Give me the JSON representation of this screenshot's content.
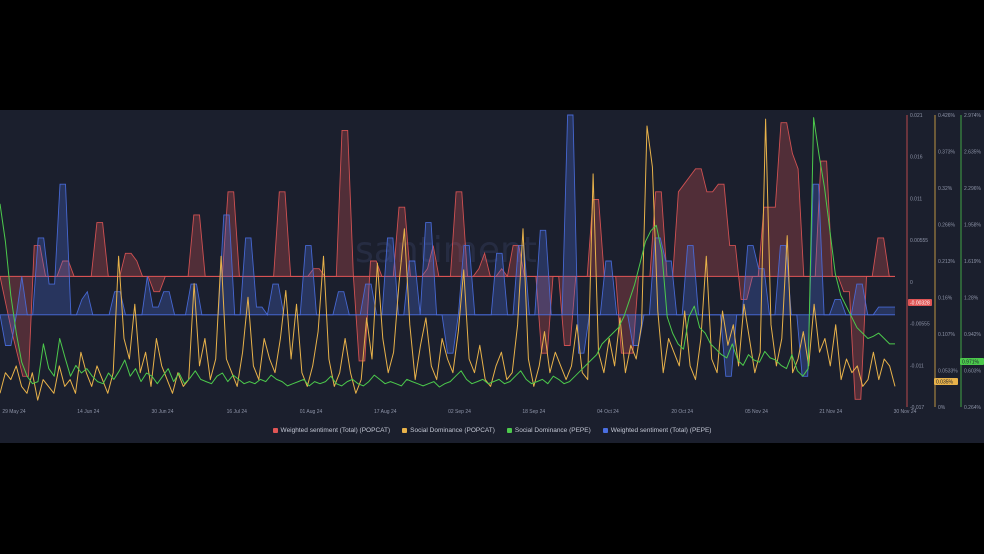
{
  "watermark": "santiment",
  "legend": [
    {
      "label": "Weighted sentiment (Total) (POPCAT)",
      "color": "#e05555"
    },
    {
      "label": "Social Dominance (POPCAT)",
      "color": "#e8b24a"
    },
    {
      "label": "Social Dominance (PEPE)",
      "color": "#4cc94c"
    },
    {
      "label": "Weighted sentiment (Total) (PEPE)",
      "color": "#4a6ee0"
    }
  ],
  "badges": {
    "popcat_sentiment": "-0.00328",
    "popcat_dominance": "0.035%",
    "pepe_dominance": "0.971%"
  },
  "chart_data": {
    "type": "line",
    "x_ticks": [
      "29 May 24",
      "14 Jun 24",
      "30 Jun 24",
      "16 Jul 24",
      "01 Aug 24",
      "17 Aug 24",
      "02 Sep 24",
      "18 Sep 24",
      "04 Oct 24",
      "20 Oct 24",
      "05 Nov 24",
      "21 Nov 24",
      "30 Nov 24"
    ],
    "axes": [
      {
        "name": "Weighted sentiment (Total) (POPCAT)",
        "color": "#e05555",
        "ticks": [
          "0.021",
          "0.016",
          "0.011",
          "0.00555",
          "0",
          "-0.00555",
          "-0.011",
          "-0.017"
        ],
        "range": [
          -0.017,
          0.021
        ]
      },
      {
        "name": "Social Dominance (POPCAT)",
        "color": "#e8b24a",
        "ticks": [
          "0.426%",
          "0.373%",
          "0.32%",
          "0.266%",
          "0.213%",
          "0.16%",
          "0.107%",
          "0.0533%",
          "0%"
        ],
        "range": [
          0,
          0.426
        ]
      },
      {
        "name": "Social Dominance (PEPE)",
        "color": "#4cc94c",
        "ticks": [
          "2.974%",
          "2.635%",
          "2.296%",
          "1.958%",
          "1.619%",
          "1.28%",
          "0.942%",
          "0.603%",
          "0.264%"
        ],
        "range": [
          0.264,
          2.974
        ]
      }
    ],
    "series": [
      {
        "name": "Weighted sentiment (Total) (POPCAT)",
        "type": "area",
        "axis": 0,
        "color": "#e05555",
        "values": [
          0,
          -0.0035,
          -0.007,
          -0.01,
          -0.013,
          -0.013,
          0.004,
          0.004,
          0,
          0,
          0,
          0.002,
          0.002,
          0,
          0,
          0,
          0,
          0.007,
          0.007,
          0,
          0,
          0,
          0.003,
          0.003,
          0.002,
          0,
          0,
          -0.002,
          -0.002,
          0,
          0,
          0,
          0,
          0,
          0.008,
          0.008,
          0,
          0,
          0,
          0,
          0.011,
          0.011,
          0,
          0,
          0,
          0,
          0,
          0,
          0,
          0.011,
          0.011,
          0,
          0,
          0,
          0,
          0.001,
          0.001,
          0,
          0,
          0,
          0.019,
          0.019,
          0,
          -0.011,
          -0.011,
          0.002,
          0.002,
          0,
          0,
          0,
          0.009,
          0.009,
          0,
          0,
          0,
          0.001,
          0.004,
          0,
          0,
          0,
          0.011,
          0.011,
          0,
          0,
          0.001,
          0.003,
          0,
          0,
          0.001,
          0,
          0.004,
          0.004,
          0,
          0,
          0,
          -0.01,
          -0.01,
          0,
          0,
          -0.009,
          -0.009,
          0,
          0,
          0,
          0.01,
          0.01,
          0,
          0,
          0,
          -0.01,
          -0.01,
          -0.01,
          0,
          0,
          0,
          0.011,
          0.011,
          0,
          0,
          0.011,
          0.012,
          0.013,
          0.014,
          0.014,
          0.011,
          0.011,
          0.012,
          0.012,
          0.004,
          0.004,
          -0.003,
          -0.003,
          0,
          0,
          0.009,
          0.009,
          0.009,
          0.02,
          0.02,
          0.016,
          0.014,
          0,
          0,
          0,
          0.015,
          0.015,
          0,
          0,
          -0.002,
          -0.002,
          -0.016,
          -0.016,
          0,
          0,
          0.005,
          0.005,
          0,
          0
        ]
      },
      {
        "name": "Weighted sentiment (Total) (PEPE)",
        "type": "area",
        "axis": 0,
        "color": "#4a6ee0",
        "values": [
          -0.005,
          -0.009,
          -0.009,
          -0.005,
          0,
          -0.005,
          -0.005,
          0.005,
          0.005,
          -0.001,
          -0.001,
          0.012,
          0.012,
          -0.005,
          -0.005,
          -0.003,
          -0.002,
          -0.005,
          -0.005,
          -0.005,
          -0.005,
          -0.002,
          -0.002,
          -0.005,
          -0.005,
          -0.005,
          -0.005,
          0,
          -0.004,
          -0.004,
          -0.002,
          -0.002,
          -0.005,
          -0.005,
          -0.005,
          -0.001,
          -0.001,
          -0.005,
          -0.005,
          -0.005,
          -0.005,
          0.008,
          0.008,
          -0.005,
          -0.005,
          0.005,
          0.005,
          -0.004,
          -0.004,
          -0.005,
          -0.001,
          -0.001,
          -0.005,
          -0.005,
          -0.005,
          -0.005,
          0.004,
          0.004,
          -0.005,
          -0.005,
          -0.005,
          -0.005,
          -0.002,
          -0.002,
          -0.005,
          -0.005,
          -0.005,
          -0.001,
          -0.001,
          -0.005,
          -0.005,
          0.005,
          0.005,
          -0.005,
          -0.005,
          0.002,
          0.002,
          -0.005,
          0.007,
          0.007,
          -0.005,
          -0.005,
          -0.01,
          -0.01,
          -0.005,
          0.004,
          0.004,
          -0.005,
          -0.005,
          -0.005,
          -0.005,
          0.003,
          0.003,
          -0.005,
          -0.005,
          0.004,
          0.004,
          -0.005,
          -0.005,
          0.006,
          0.006,
          -0.005,
          -0.005,
          -0.005,
          0.021,
          0.021,
          -0.01,
          -0.01,
          -0.005,
          -0.005,
          -0.005,
          0.002,
          0.002,
          -0.005,
          -0.005,
          -0.005,
          -0.009,
          -0.009,
          -0.005,
          -0.005,
          0.005,
          0.005,
          0.002,
          0.002,
          -0.005,
          -0.005,
          0.004,
          0.004,
          -0.005,
          -0.005,
          -0.005,
          -0.005,
          -0.005,
          -0.013,
          -0.013,
          -0.005,
          -0.005,
          0.004,
          0.004,
          0.001,
          0.001,
          -0.005,
          -0.005,
          0.004,
          0.004,
          -0.005,
          -0.005,
          -0.013,
          -0.013,
          0.012,
          0.012,
          -0.005,
          -0.005,
          -0.003,
          -0.003,
          -0.005,
          -0.005,
          -0.001,
          -0.001,
          -0.005,
          -0.005,
          -0.004,
          -0.004,
          -0.004,
          -0.004
        ]
      },
      {
        "name": "Social Dominance (POPCAT)",
        "type": "line",
        "axis": 1,
        "color": "#e8b24a",
        "values": [
          0.02,
          0.05,
          0.04,
          0.06,
          0.03,
          0.02,
          0.05,
          0.01,
          0.04,
          0.03,
          0.02,
          0.06,
          0.03,
          0.04,
          0.02,
          0.08,
          0.05,
          0.03,
          0.06,
          0.04,
          0.02,
          0.05,
          0.22,
          0.1,
          0.07,
          0.15,
          0.05,
          0.08,
          0.03,
          0.1,
          0.06,
          0.04,
          0.02,
          0.05,
          0.03,
          0.04,
          0.18,
          0.06,
          0.1,
          0.04,
          0.07,
          0.22,
          0.07,
          0.05,
          0.03,
          0.08,
          0.16,
          0.06,
          0.04,
          0.1,
          0.07,
          0.05,
          0.1,
          0.17,
          0.07,
          0.15,
          0.05,
          0.03,
          0.06,
          0.11,
          0.22,
          0.07,
          0.03,
          0.05,
          0.1,
          0.05,
          0.02,
          0.04,
          0.13,
          0.07,
          0.21,
          0.1,
          0.05,
          0.08,
          0.18,
          0.26,
          0.12,
          0.04,
          0.09,
          0.13,
          0.06,
          0.04,
          0.1,
          0.07,
          0.05,
          0.11,
          0.2,
          0.07,
          0.05,
          0.09,
          0.04,
          0.03,
          0.06,
          0.08,
          0.04,
          0.05,
          0.12,
          0.26,
          0.07,
          0.03,
          0.06,
          0.11,
          0.05,
          0.08,
          0.06,
          0.04,
          0.06,
          0.12,
          0.05,
          0.04,
          0.34,
          0.08,
          0.05,
          0.1,
          0.06,
          0.13,
          0.05,
          0.09,
          0.07,
          0.12,
          0.41,
          0.35,
          0.14,
          0.05,
          0.1,
          0.08,
          0.06,
          0.14,
          0.06,
          0.04,
          0.1,
          0.22,
          0.07,
          0.05,
          0.14,
          0.09,
          0.12,
          0.06,
          0.15,
          0.1,
          0.05,
          0.08,
          0.42,
          0.12,
          0.06,
          0.1,
          0.25,
          0.05,
          0.07,
          0.11,
          0.06,
          0.15,
          0.08,
          0.1,
          0.06,
          0.12,
          0.04,
          0.07,
          0.05,
          0.06,
          0.03,
          0.04,
          0.08,
          0.04,
          0.07,
          0.06,
          0.03
        ]
      },
      {
        "name": "Social Dominance (PEPE)",
        "type": "line",
        "axis": 2,
        "color": "#4cc94c",
        "values": [
          2.15,
          1.8,
          1.3,
          0.95,
          0.68,
          0.55,
          0.48,
          0.5,
          0.85,
          0.62,
          0.55,
          0.9,
          0.72,
          0.55,
          0.65,
          0.58,
          0.62,
          0.55,
          0.5,
          0.48,
          0.58,
          0.52,
          0.6,
          0.7,
          0.55,
          0.62,
          0.5,
          0.58,
          0.55,
          0.48,
          0.55,
          0.62,
          0.5,
          0.58,
          0.48,
          0.53,
          0.6,
          0.52,
          0.5,
          0.48,
          0.55,
          0.58,
          0.5,
          0.56,
          0.52,
          0.48,
          0.5,
          0.48,
          0.52,
          0.5,
          0.56,
          0.52,
          0.5,
          0.46,
          0.48,
          0.5,
          0.52,
          0.46,
          0.5,
          0.48,
          0.5,
          0.55,
          0.48,
          0.46,
          0.5,
          0.52,
          0.48,
          0.46,
          0.5,
          0.56,
          0.52,
          0.48,
          0.5,
          0.48,
          0.46,
          0.52,
          0.5,
          0.48,
          0.46,
          0.48,
          0.5,
          0.45,
          0.48,
          0.5,
          0.55,
          0.6,
          0.52,
          0.48,
          0.5,
          0.52,
          0.48,
          0.5,
          0.52,
          0.48,
          0.5,
          0.55,
          0.6,
          0.52,
          0.48,
          0.5,
          0.52,
          0.48,
          0.55,
          0.52,
          0.48,
          0.5,
          0.55,
          0.6,
          0.65,
          0.7,
          0.75,
          0.85,
          0.9,
          0.95,
          1.0,
          1.1,
          1.25,
          1.4,
          1.6,
          1.8,
          1.9,
          1.95,
          1.7,
          1.1,
          0.95,
          0.85,
          0.8,
          1.1,
          1.2,
          1.0,
          0.95,
          0.85,
          0.8,
          0.75,
          0.72,
          0.85,
          0.7,
          0.65,
          0.75,
          0.7,
          0.68,
          0.78,
          0.72,
          0.7,
          0.65,
          0.62,
          0.75,
          0.6,
          0.55,
          0.62,
          2.95,
          2.6,
          2.3,
          1.9,
          1.5,
          1.3,
          1.2,
          1.1,
          1.0,
          0.95,
          0.9,
          0.92,
          0.95,
          0.9,
          0.85,
          0.85
        ]
      }
    ]
  }
}
